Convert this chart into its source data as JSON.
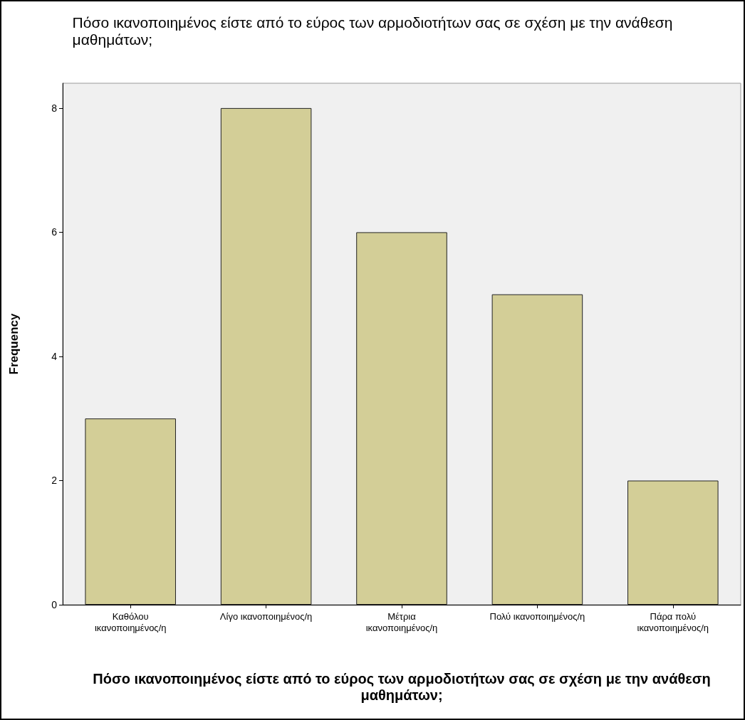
{
  "chart_data": {
    "type": "bar",
    "title": "Πόσο ικανοποιημένος είστε από το εύρος των αρμοδιοτήτων σας σε σχέση με την ανάθεση μαθημάτων;",
    "xlabel": "Πόσο ικανοποιημένος είστε από το εύρος των αρμοδιοτήτων σας σε σχέση με την ανάθεση μαθημάτων;",
    "ylabel": "Frequency",
    "categories": [
      "Καθόλου ικανοποιημένος/η",
      "Λίγο ικανοποιημένος/η",
      "Μέτρια ικανοποιημένος/η",
      "Πολύ ικανοποιημένος/η",
      "Πάρα πολύ ικανοποιημένος/η"
    ],
    "values": [
      3,
      8,
      6,
      5,
      2
    ],
    "color": "#d3ce97",
    "ylim": [
      0,
      8.4
    ],
    "yticks": [
      0,
      2,
      4,
      6,
      8
    ],
    "grid": false
  }
}
